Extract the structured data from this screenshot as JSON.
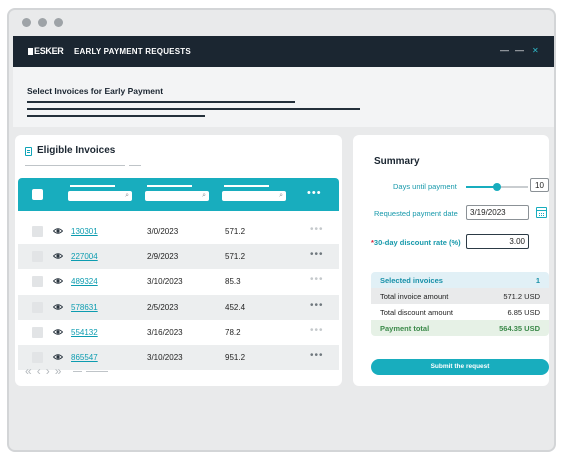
{
  "app": {
    "logo_text": "ESKER",
    "title": "EARLY PAYMENT REQUESTS"
  },
  "page": {
    "title": "Select Invoices for Early Payment"
  },
  "invoices": {
    "title": "Eligible Invoices",
    "rows": [
      {
        "id": "130301",
        "date": "3/0/2023",
        "amount": "571.2"
      },
      {
        "id": "227004",
        "date": "2/9/2023",
        "amount": "571.2"
      },
      {
        "id": "489324",
        "date": "3/10/2023",
        "amount": "85.3"
      },
      {
        "id": "578631",
        "date": "2/5/2023",
        "amount": "452.4"
      },
      {
        "id": "554132",
        "date": "3/16/2023",
        "amount": "78.2"
      },
      {
        "id": "865547",
        "date": "3/10/2023",
        "amount": "951.2"
      }
    ]
  },
  "summary": {
    "title": "Summary",
    "days_label": "Days until payment",
    "days_value": "10",
    "days_slider_fraction": 0.5,
    "date_label": "Requested payment date",
    "date_value": "3/19/2023",
    "discount_required_mark": "*",
    "discount_label": "30-day discount rate (%)",
    "discount_value": "3.00",
    "selected_label": "Selected invoices",
    "selected_count": "1",
    "total_invoice_label": "Total invoice amount",
    "total_invoice_value": "571.2 USD",
    "total_discount_label": "Total discount amount",
    "total_discount_value": "6.85 USD",
    "payment_total_label": "Payment total",
    "payment_total_value": "564.35 USD",
    "submit_label": "Submit the request"
  },
  "colors": {
    "accent": "#18adbe",
    "header_dark": "#1b2631",
    "link": "#0c9cb0",
    "required": "#d7263d",
    "selected_bg": "#e1f0f6",
    "total_bg": "#e6f1e6"
  }
}
